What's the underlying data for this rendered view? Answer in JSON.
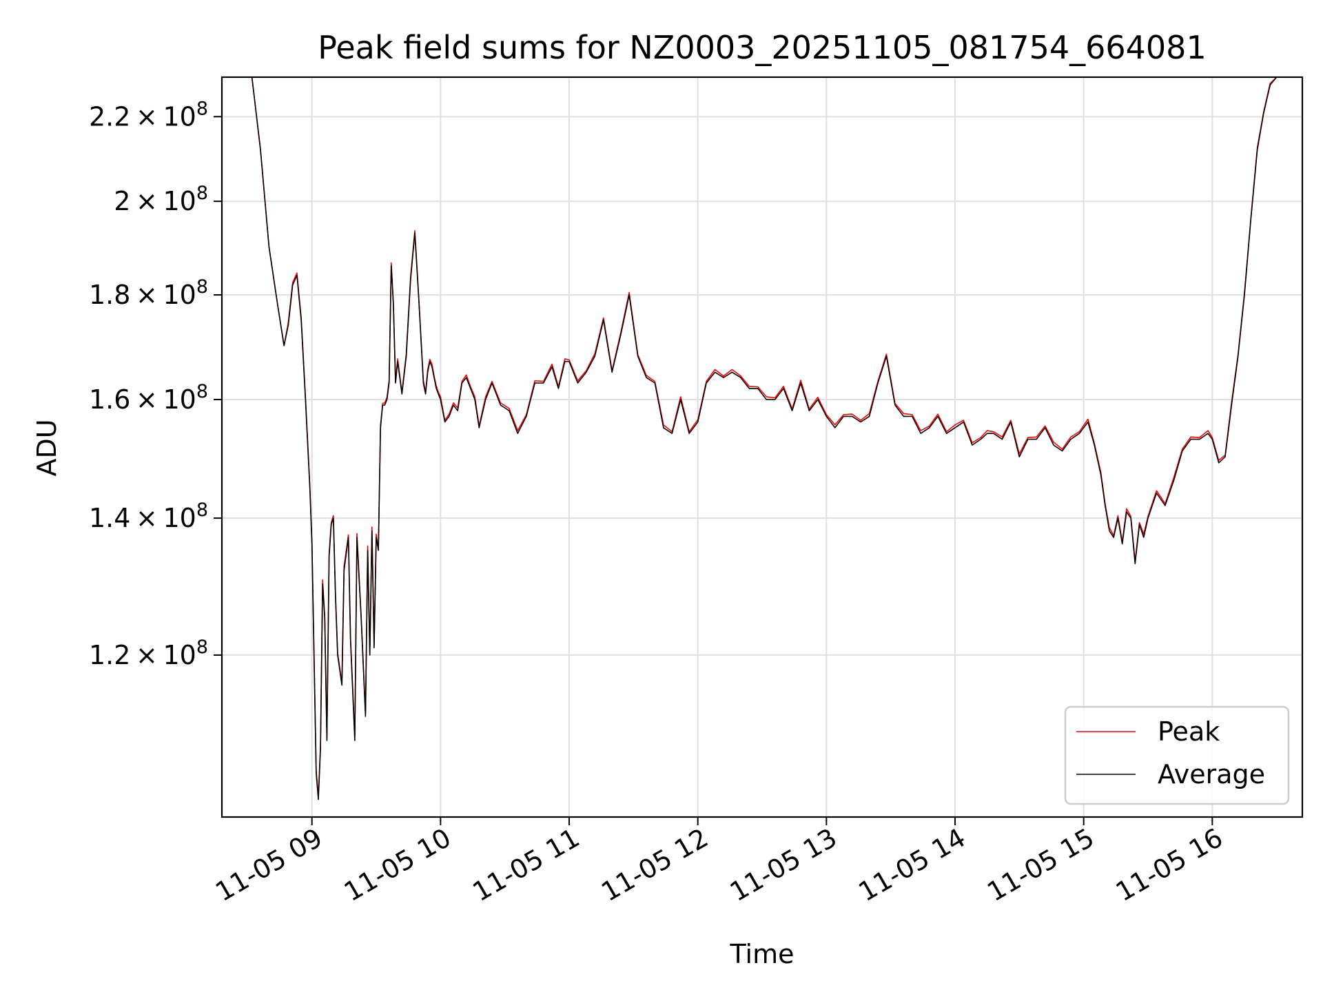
{
  "chart_data": {
    "type": "line",
    "title": "Peak field sums for NZ0003_20251105_081754_664081",
    "xlabel": "Time",
    "ylabel": "ADU",
    "y_scale": "log",
    "xlim": [
      "2025-11-05 08:18",
      "2025-11-05 16:42"
    ],
    "ylim": [
      100000000,
      230000000
    ],
    "grid": true,
    "legend_position": "lower right",
    "x_ticks": [
      {
        "t": "2025-11-05 09:00",
        "label": "11-05 09"
      },
      {
        "t": "2025-11-05 10:00",
        "label": "11-05 10"
      },
      {
        "t": "2025-11-05 11:00",
        "label": "11-05 11"
      },
      {
        "t": "2025-11-05 12:00",
        "label": "11-05 12"
      },
      {
        "t": "2025-11-05 13:00",
        "label": "11-05 13"
      },
      {
        "t": "2025-11-05 14:00",
        "label": "11-05 14"
      },
      {
        "t": "2025-11-05 15:00",
        "label": "11-05 15"
      },
      {
        "t": "2025-11-05 16:00",
        "label": "11-05 16"
      }
    ],
    "y_ticks": [
      {
        "v": 120000000,
        "mant": "1.2",
        "exp": "8"
      },
      {
        "v": 140000000,
        "mant": "1.4",
        "exp": "8"
      },
      {
        "v": 160000000,
        "mant": "1.6",
        "exp": "8"
      },
      {
        "v": 180000000,
        "mant": "1.8",
        "exp": "8"
      },
      {
        "v": 200000000,
        "mant": "2",
        "exp": "8"
      },
      {
        "v": 220000000,
        "mant": "2.2",
        "exp": "8"
      }
    ],
    "series": [
      {
        "name": "Peak",
        "color": "#ff0000"
      },
      {
        "name": "Average",
        "color": "#000000"
      }
    ],
    "x": [
      "2025-11-05 08:18",
      "2025-11-05 08:32",
      "2025-11-05 08:36",
      "2025-11-05 08:40",
      "2025-11-05 08:44",
      "2025-11-05 08:47",
      "2025-11-05 08:49",
      "2025-11-05 08:51",
      "2025-11-05 08:53",
      "2025-11-05 08:55",
      "2025-11-05 08:57",
      "2025-11-05 08:59",
      "2025-11-05 09:00",
      "2025-11-05 09:02",
      "2025-11-05 09:03",
      "2025-11-05 09:04",
      "2025-11-05 09:05",
      "2025-11-05 09:06",
      "2025-11-05 09:07",
      "2025-11-05 09:08",
      "2025-11-05 09:09",
      "2025-11-05 09:10",
      "2025-11-05 09:11",
      "2025-11-05 09:12",
      "2025-11-05 09:14",
      "2025-11-05 09:15",
      "2025-11-05 09:17",
      "2025-11-05 09:18",
      "2025-11-05 09:20",
      "2025-11-05 09:21",
      "2025-11-05 09:23",
      "2025-11-05 09:25",
      "2025-11-05 09:26",
      "2025-11-05 09:27",
      "2025-11-05 09:28",
      "2025-11-05 09:29",
      "2025-11-05 09:30",
      "2025-11-05 09:31",
      "2025-11-05 09:32",
      "2025-11-05 09:33",
      "2025-11-05 09:34",
      "2025-11-05 09:35",
      "2025-11-05 09:36",
      "2025-11-05 09:37",
      "2025-11-05 09:38",
      "2025-11-05 09:39",
      "2025-11-05 09:40",
      "2025-11-05 09:42",
      "2025-11-05 09:44",
      "2025-11-05 09:46",
      "2025-11-05 09:48",
      "2025-11-05 09:50",
      "2025-11-05 09:52",
      "2025-11-05 09:53",
      "2025-11-05 09:54",
      "2025-11-05 09:55",
      "2025-11-05 09:56",
      "2025-11-05 09:57",
      "2025-11-05 09:58",
      "2025-11-05 09:59",
      "2025-11-05 10:00",
      "2025-11-05 10:02",
      "2025-11-05 10:04",
      "2025-11-05 10:06",
      "2025-11-05 10:08",
      "2025-11-05 10:10",
      "2025-11-05 10:12",
      "2025-11-05 10:14",
      "2025-11-05 10:16",
      "2025-11-05 10:18",
      "2025-11-05 10:21",
      "2025-11-05 10:24",
      "2025-11-05 10:28",
      "2025-11-05 10:32",
      "2025-11-05 10:36",
      "2025-11-05 10:40",
      "2025-11-05 10:44",
      "2025-11-05 10:48",
      "2025-11-05 10:52",
      "2025-11-05 10:55",
      "2025-11-05 10:58",
      "2025-11-05 11:00",
      "2025-11-05 11:04",
      "2025-11-05 11:08",
      "2025-11-05 11:12",
      "2025-11-05 11:16",
      "2025-11-05 11:20",
      "2025-11-05 11:24",
      "2025-11-05 11:28",
      "2025-11-05 11:32",
      "2025-11-05 11:36",
      "2025-11-05 11:40",
      "2025-11-05 11:44",
      "2025-11-05 11:48",
      "2025-11-05 11:52",
      "2025-11-05 11:56",
      "2025-11-05 12:00",
      "2025-11-05 12:04",
      "2025-11-05 12:08",
      "2025-11-05 12:12",
      "2025-11-05 12:16",
      "2025-11-05 12:20",
      "2025-11-05 12:24",
      "2025-11-05 12:28",
      "2025-11-05 12:32",
      "2025-11-05 12:36",
      "2025-11-05 12:40",
      "2025-11-05 12:44",
      "2025-11-05 12:48",
      "2025-11-05 12:52",
      "2025-11-05 12:56",
      "2025-11-05 13:00",
      "2025-11-05 13:04",
      "2025-11-05 13:08",
      "2025-11-05 13:12",
      "2025-11-05 13:16",
      "2025-11-05 13:20",
      "2025-11-05 13:24",
      "2025-11-05 13:28",
      "2025-11-05 13:32",
      "2025-11-05 13:36",
      "2025-11-05 13:40",
      "2025-11-05 13:44",
      "2025-11-05 13:48",
      "2025-11-05 13:52",
      "2025-11-05 13:56",
      "2025-11-05 14:00",
      "2025-11-05 14:04",
      "2025-11-05 14:08",
      "2025-11-05 14:12",
      "2025-11-05 14:15",
      "2025-11-05 14:18",
      "2025-11-05 14:22",
      "2025-11-05 14:26",
      "2025-11-05 14:30",
      "2025-11-05 14:34",
      "2025-11-05 14:38",
      "2025-11-05 14:42",
      "2025-11-05 14:46",
      "2025-11-05 14:50",
      "2025-11-05 14:54",
      "2025-11-05 14:58",
      "2025-11-05 15:02",
      "2025-11-05 15:05",
      "2025-11-05 15:08",
      "2025-11-05 15:10",
      "2025-11-05 15:12",
      "2025-11-05 15:14",
      "2025-11-05 15:16",
      "2025-11-05 15:18",
      "2025-11-05 15:20",
      "2025-11-05 15:22",
      "2025-11-05 15:24",
      "2025-11-05 15:26",
      "2025-11-05 15:28",
      "2025-11-05 15:30",
      "2025-11-05 15:34",
      "2025-11-05 15:38",
      "2025-11-05 15:42",
      "2025-11-05 15:46",
      "2025-11-05 15:50",
      "2025-11-05 15:54",
      "2025-11-05 15:58",
      "2025-11-05 16:00",
      "2025-11-05 16:03",
      "2025-11-05 16:06",
      "2025-11-05 16:09",
      "2025-11-05 16:12",
      "2025-11-05 16:15",
      "2025-11-05 16:18",
      "2025-11-05 16:21",
      "2025-11-05 16:24",
      "2025-11-05 16:27",
      "2025-11-05 16:30",
      "2025-11-05 16:33",
      "2025-11-05 16:36",
      "2025-11-05 16:39",
      "2025-11-05 16:42"
    ],
    "average": [
      230000000,
      230000000,
      212000000,
      190000000,
      178000000,
      170000000,
      174000000,
      182000000,
      184000000,
      175000000,
      160000000,
      145000000,
      136000000,
      105000000,
      102000000,
      108000000,
      130000000,
      125000000,
      109000000,
      134000000,
      139000000,
      140000000,
      128000000,
      120000000,
      116000000,
      132000000,
      137000000,
      122000000,
      109000000,
      137000000,
      125000000,
      112000000,
      135000000,
      120000000,
      138000000,
      121000000,
      137000000,
      135000000,
      155000000,
      159000000,
      159000000,
      160000000,
      163000000,
      186000000,
      178000000,
      163000000,
      167000000,
      161000000,
      168000000,
      183000000,
      193000000,
      178000000,
      163000000,
      161000000,
      165000000,
      167000000,
      166000000,
      164000000,
      162000000,
      161000000,
      160000000,
      156000000,
      157000000,
      159000000,
      158000000,
      163000000,
      164000000,
      162000000,
      160000000,
      155000000,
      160000000,
      163000000,
      159000000,
      158000000,
      154000000,
      157000000,
      163000000,
      163000000,
      166000000,
      162000000,
      167000000,
      167000000,
      163000000,
      165000000,
      168000000,
      175000000,
      165000000,
      172000000,
      180000000,
      168000000,
      164000000,
      163000000,
      155000000,
      154000000,
      160000000,
      154000000,
      156000000,
      163000000,
      165000000,
      164000000,
      165000000,
      164000000,
      162000000,
      162000000,
      160000000,
      160000000,
      162000000,
      158000000,
      163000000,
      158000000,
      160000000,
      157000000,
      155000000,
      157000000,
      157000000,
      156000000,
      157000000,
      163000000,
      168000000,
      159000000,
      157000000,
      157000000,
      154000000,
      155000000,
      157000000,
      154000000,
      155000000,
      156000000,
      152000000,
      153000000,
      154000000,
      154000000,
      153000000,
      156000000,
      150000000,
      153000000,
      153000000,
      155000000,
      152000000,
      151000000,
      153000000,
      154000000,
      156000000,
      152000000,
      147000000,
      142000000,
      138000000,
      137000000,
      140000000,
      136000000,
      141000000,
      140000000,
      133000000,
      139000000,
      137000000,
      140000000,
      144000000,
      142000000,
      146000000,
      151000000,
      153000000,
      153000000,
      154000000,
      153000000,
      149000000,
      150000000,
      159000000,
      168000000,
      180000000,
      196000000,
      212000000,
      221000000,
      228000000,
      230000000,
      230000000
    ],
    "peak": [
      230000000,
      230000000,
      212000000,
      190000000,
      178000000,
      170000000,
      174500000,
      182500000,
      184500000,
      175500000,
      160500000,
      145300000,
      136400000,
      105300000,
      102400000,
      108300000,
      130600000,
      125300000,
      109400000,
      134500000,
      139300000,
      140400000,
      128500000,
      120300000,
      116300000,
      132600000,
      137400000,
      122300000,
      109500000,
      137600000,
      125200000,
      112400000,
      135700000,
      120300000,
      138600000,
      121400000,
      137500000,
      135300000,
      155400000,
      159300000,
      159400000,
      160400000,
      163500000,
      186600000,
      178400000,
      163400000,
      167500000,
      161300000,
      168500000,
      183600000,
      193500000,
      178400000,
      163500000,
      161300000,
      165500000,
      167400000,
      166500000,
      164300000,
      162500000,
      161300000,
      160500000,
      156300000,
      157400000,
      159400000,
      158500000,
      163300000,
      164500000,
      162300000,
      160500000,
      155300000,
      160500000,
      163300000,
      159400000,
      158400000,
      154500000,
      157300000,
      163400000,
      163300000,
      166500000,
      162300000,
      167500000,
      167300000,
      163400000,
      165300000,
      168500000,
      175400000,
      165300000,
      172400000,
      180500000,
      168300000,
      164400000,
      163300000,
      155500000,
      154300000,
      160500000,
      154300000,
      156400000,
      163300000,
      165500000,
      164300000,
      165500000,
      164300000,
      162400000,
      162300000,
      160500000,
      160300000,
      162400000,
      158300000,
      163500000,
      158300000,
      160400000,
      157300000,
      155500000,
      157300000,
      157400000,
      156300000,
      157500000,
      163300000,
      168400000,
      159300000,
      157500000,
      157300000,
      154500000,
      155300000,
      157400000,
      154300000,
      155500000,
      156300000,
      152400000,
      153300000,
      154500000,
      154300000,
      153400000,
      156300000,
      150500000,
      153300000,
      153400000,
      155300000,
      152500000,
      151300000,
      153400000,
      154300000,
      156500000,
      152300000,
      147400000,
      142300000,
      138500000,
      137300000,
      140400000,
      136300000,
      141500000,
      140300000,
      133400000,
      139300000,
      137500000,
      140300000,
      144400000,
      142300000,
      146500000,
      151300000,
      153400000,
      153300000,
      154500000,
      153300000,
      149400000,
      150300000,
      159500000,
      168300000,
      180400000,
      196300000,
      212500000,
      221300000,
      228400000,
      230000000,
      230000000
    ]
  }
}
